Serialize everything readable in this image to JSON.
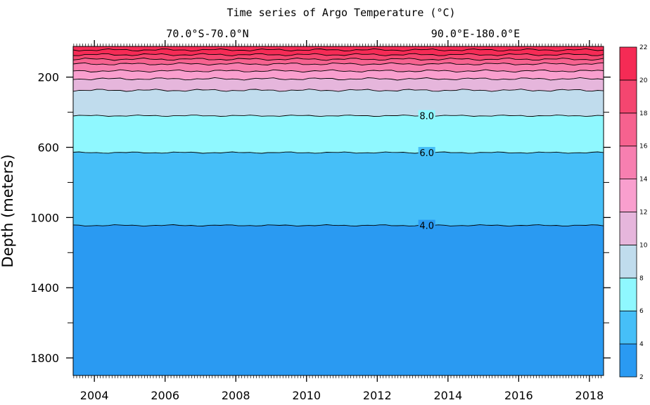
{
  "chart_data": {
    "type": "heatmap",
    "title": "Time series of Argo Temperature (°C)",
    "region_lat": "70.0°S-70.0°N",
    "region_lon": "90.0°E-180.0°E",
    "ylabel": "Depth (meters)",
    "xlabel": "",
    "xlim": [
      2003.4,
      2018.4
    ],
    "ylim": [
      1900,
      25
    ],
    "x_ticks": [
      "2004",
      "2006",
      "2008",
      "2010",
      "2012",
      "2014",
      "2016",
      "2018"
    ],
    "x_tick_values": [
      2004,
      2006,
      2008,
      2010,
      2012,
      2014,
      2016,
      2018
    ],
    "y_ticks": [
      "200",
      "600",
      "1000",
      "1400",
      "1800"
    ],
    "y_tick_values": [
      200,
      600,
      1000,
      1400,
      1800
    ],
    "y_minor_tick_values": [
      400,
      800,
      1200,
      1600
    ],
    "isotherms": [
      {
        "temp": 22,
        "depth": 45
      },
      {
        "temp": 20,
        "depth": 72
      },
      {
        "temp": 18,
        "depth": 98
      },
      {
        "temp": 16,
        "depth": 125
      },
      {
        "temp": 14,
        "depth": 165
      },
      {
        "temp": 12,
        "depth": 210
      },
      {
        "temp": 10,
        "depth": 275
      },
      {
        "temp": 8,
        "depth": 420
      },
      {
        "temp": 6,
        "depth": 630
      },
      {
        "temp": 4,
        "depth": 1045
      }
    ],
    "contour_labels": [
      {
        "text": "8.0",
        "x": 2013.4,
        "depth": 420
      },
      {
        "text": "6.0",
        "x": 2013.4,
        "depth": 630
      },
      {
        "text": "4.0",
        "x": 2013.4,
        "depth": 1045
      }
    ],
    "colorbar": {
      "levels": [
        "2",
        "4",
        "6",
        "8",
        "10",
        "12",
        "14",
        "16",
        "18",
        "20",
        "22"
      ],
      "colors": [
        "#2a9af2",
        "#46bff8",
        "#8ff8ff",
        "#c0dced",
        "#e6b6dc",
        "#f99fce",
        "#f77fb0",
        "#f6628f",
        "#f44670",
        "#f52b55"
      ]
    }
  }
}
